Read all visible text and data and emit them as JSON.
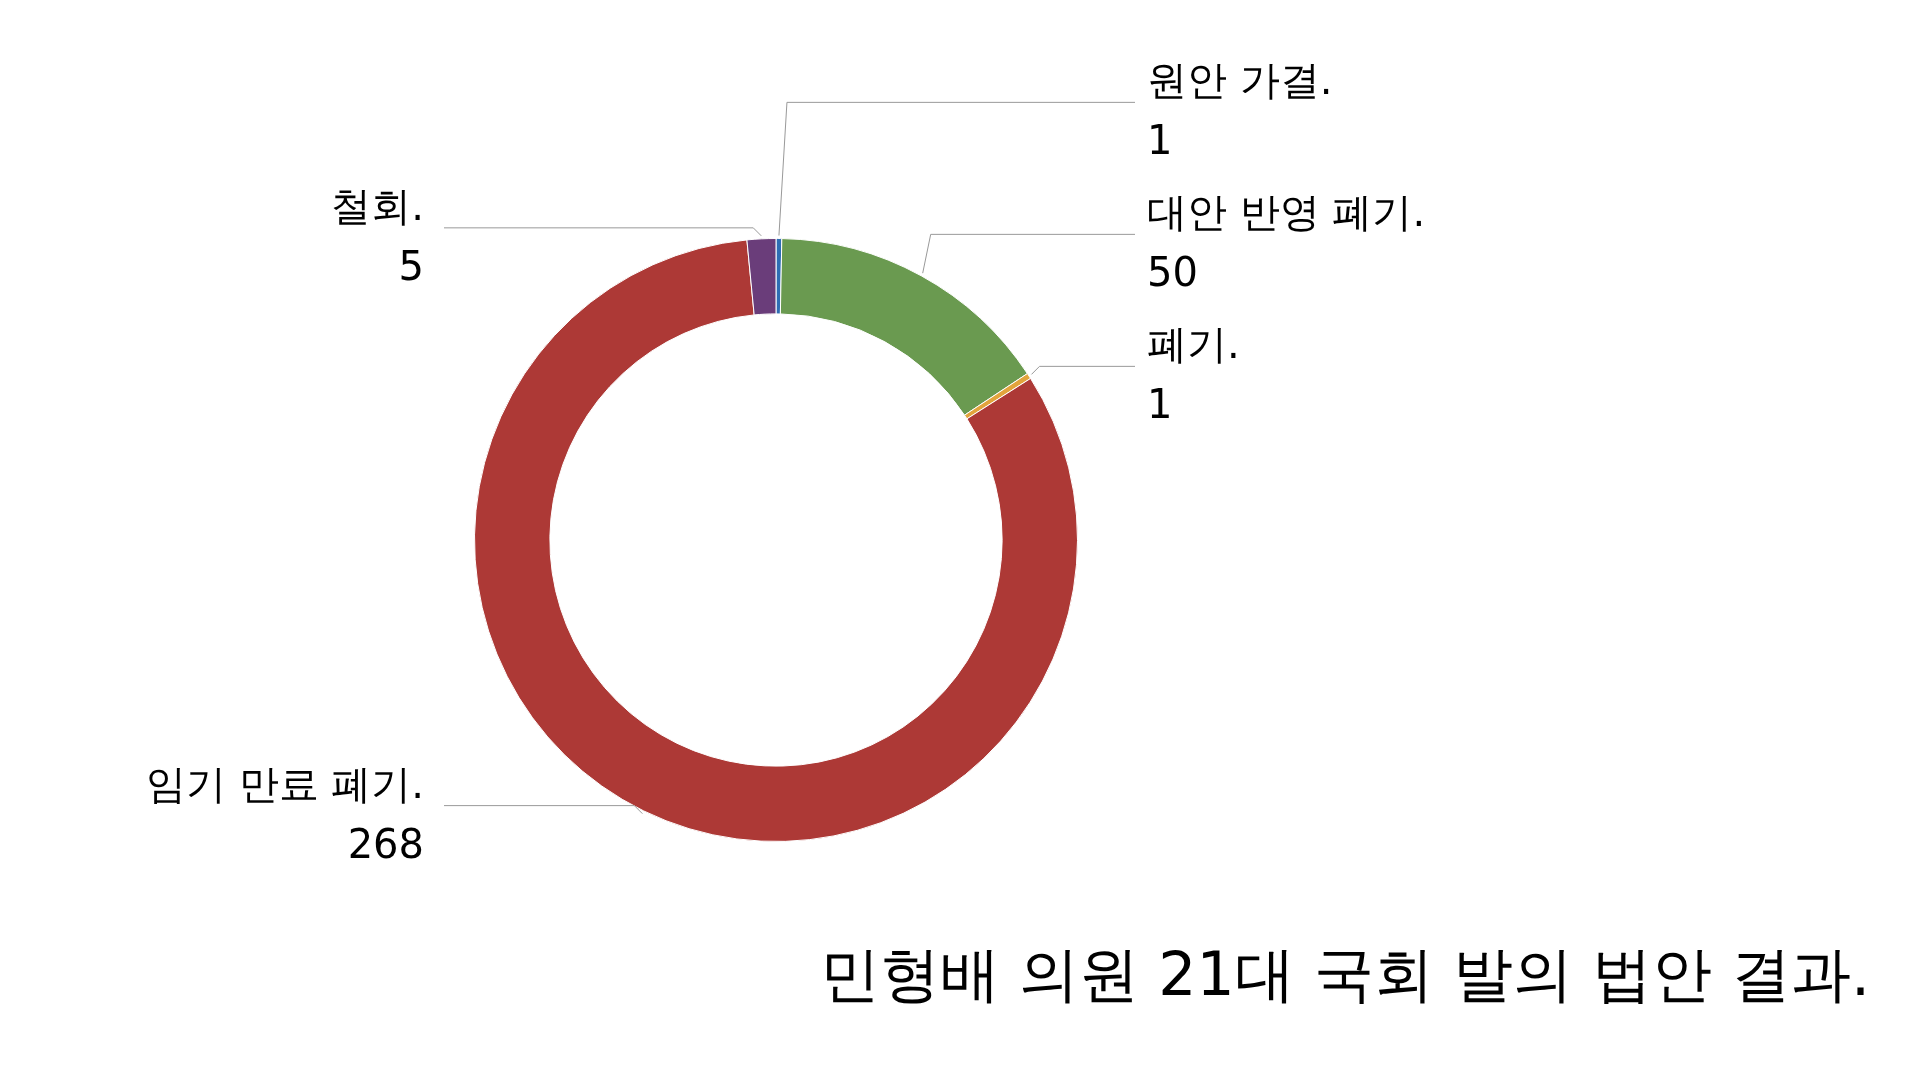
{
  "chart_data": {
    "type": "donut",
    "title": "민형배 의원 21대 국회 발의 법안 결과.",
    "categories": [
      "원안 가결.",
      "대안 반영 폐기.",
      "폐기.",
      "임기 만료 폐기.",
      "철회."
    ],
    "values": [
      1,
      50,
      1,
      268,
      5
    ],
    "colors": [
      "#2e6db4",
      "#6a9a50",
      "#e2a43c",
      "#ad3936",
      "#6a3d7a"
    ],
    "data_labels": true,
    "legend": false
  }
}
